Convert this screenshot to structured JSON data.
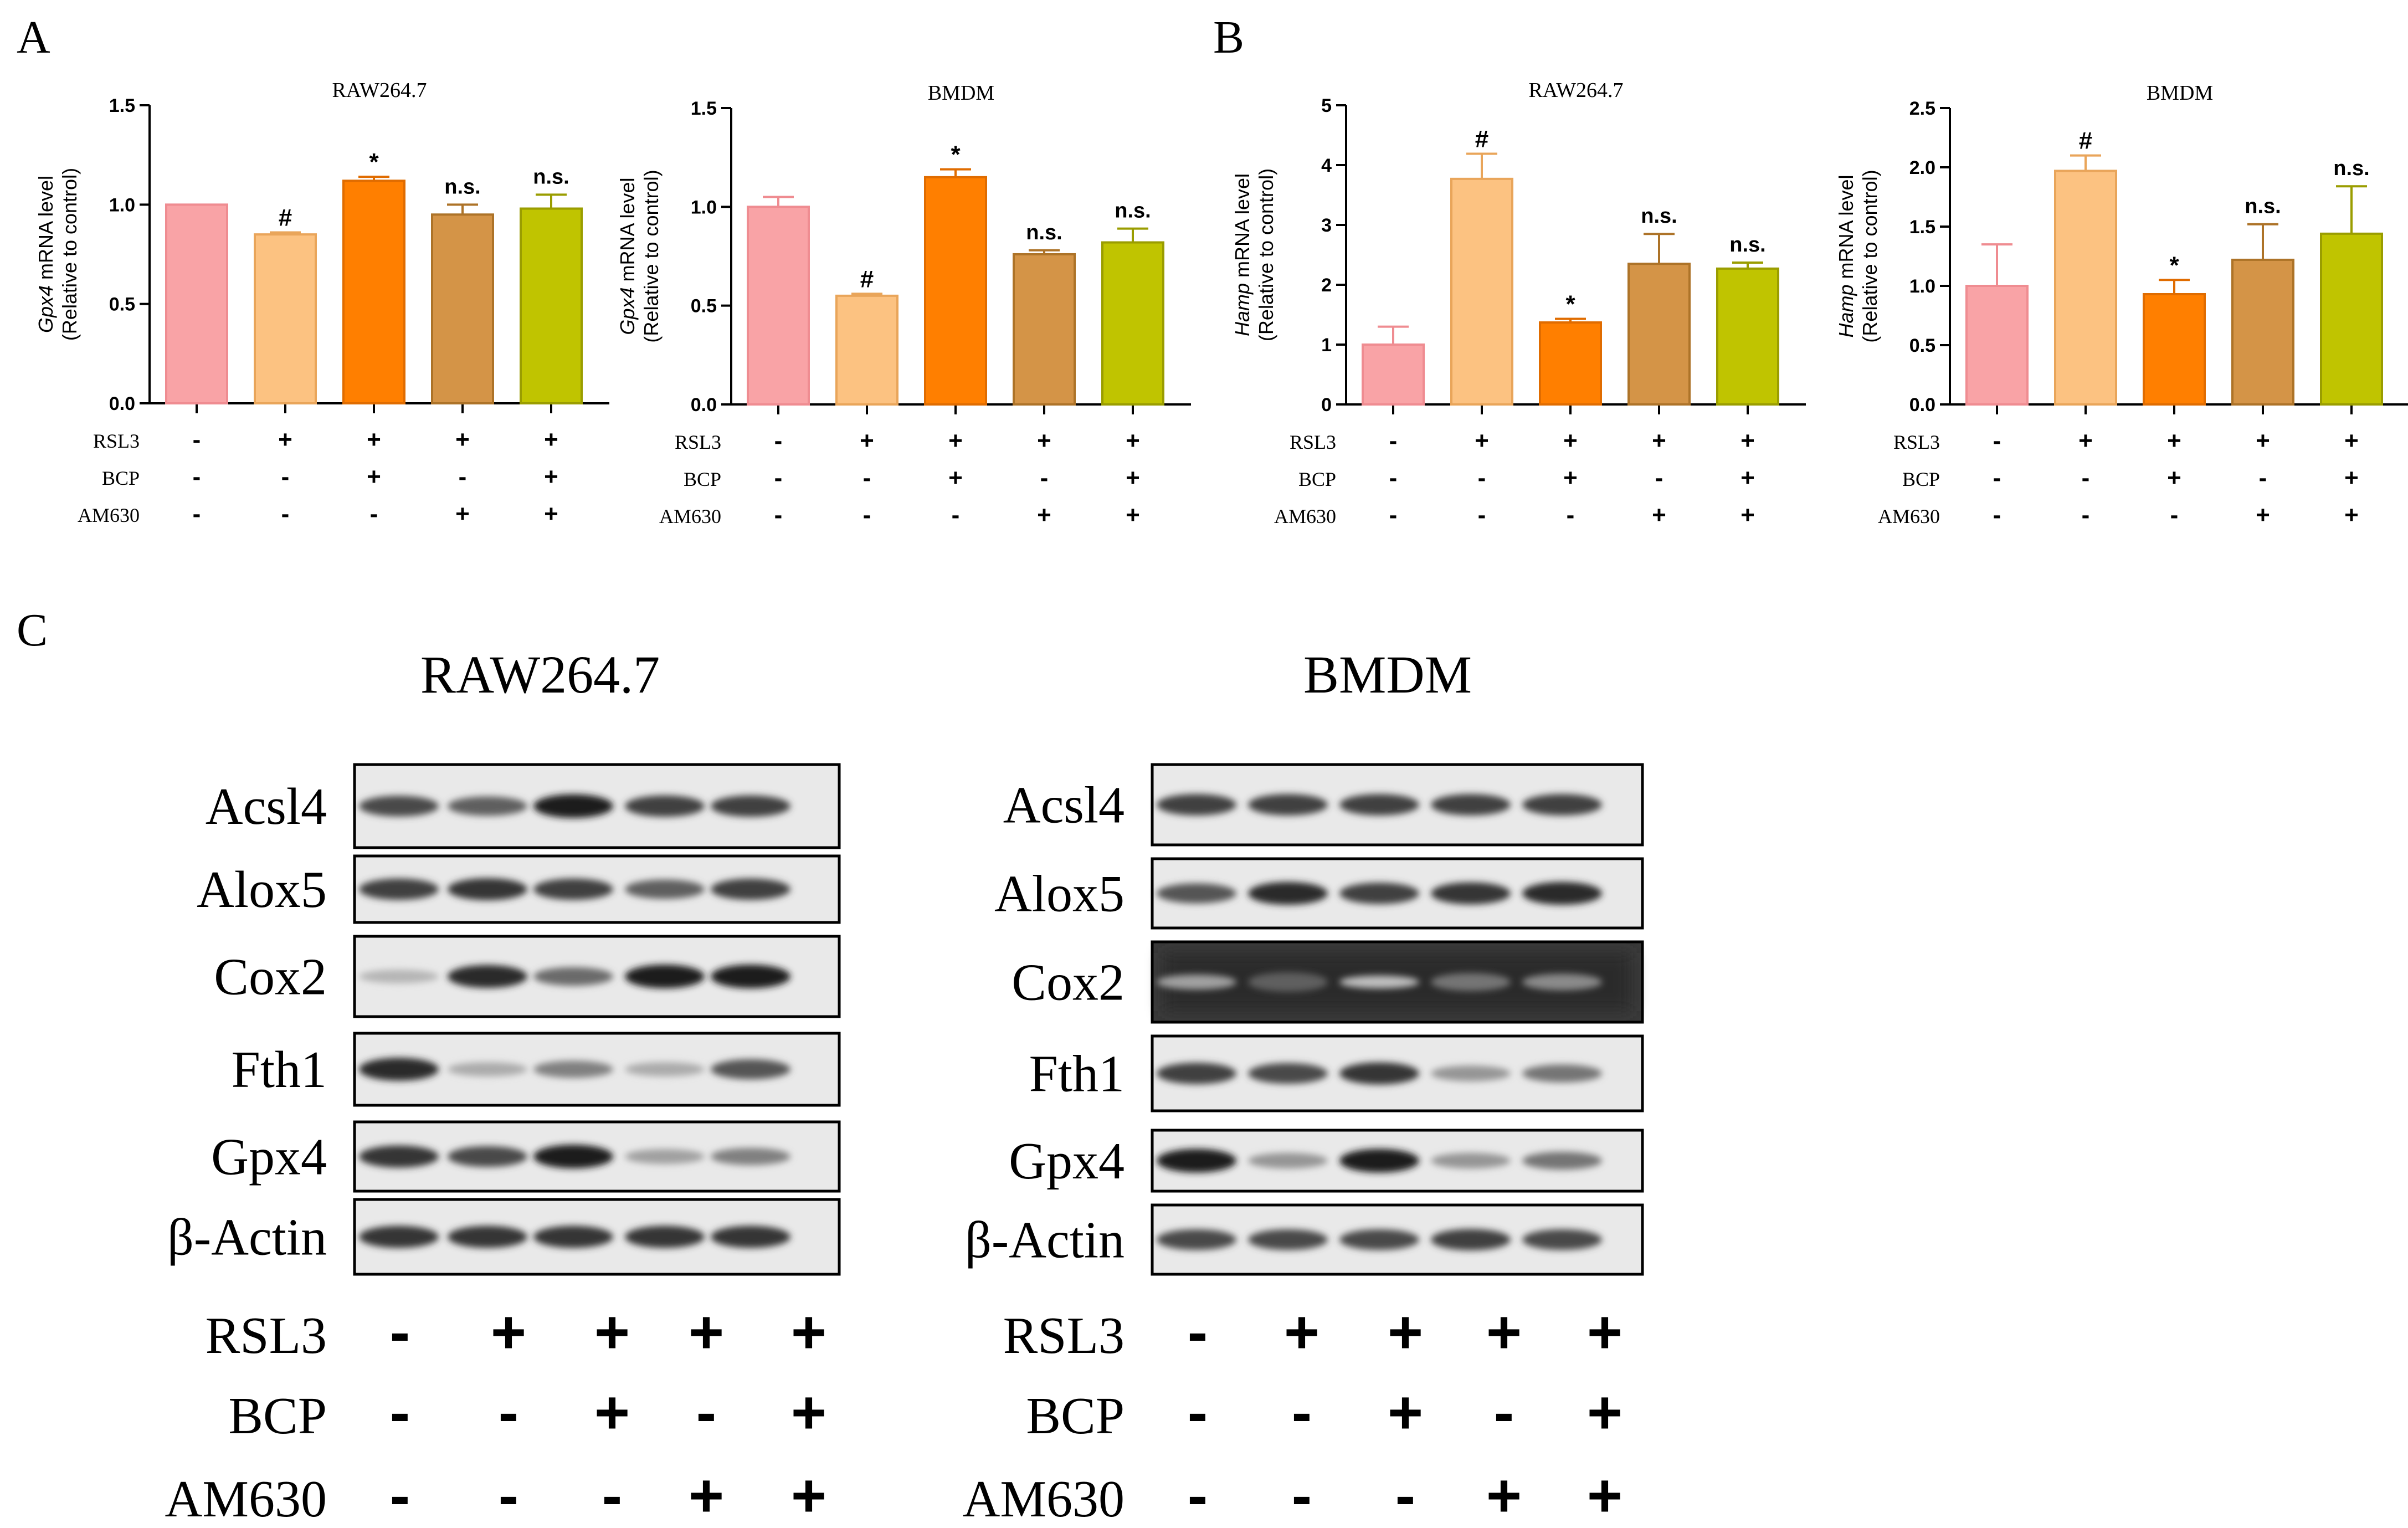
{
  "panels": {
    "A": "A",
    "B": "B",
    "C": "C"
  },
  "treatment_labels": [
    "RSL3",
    "BCP",
    "AM630"
  ],
  "treatments": {
    "RSL3": [
      "-",
      "+",
      "+",
      "+",
      "+"
    ],
    "BCP": [
      "-",
      "-",
      "+",
      "-",
      "+"
    ],
    "AM630": [
      "-",
      "-",
      "-",
      "+",
      "+"
    ]
  },
  "bar_colors": [
    "#f9a3a6",
    "#fcc281",
    "#ff7f00",
    "#d49447",
    "#c0c400"
  ],
  "bar_edge_colors": [
    "#ef8c91",
    "#e9a55a",
    "#e06c00",
    "#ad7328",
    "#9a9d00"
  ],
  "chart_data": [
    {
      "type": "bar",
      "panel": "A",
      "title": "RAW264.7",
      "ylabel_gene": "Gpx4",
      "ylabel_rest": " mRNA level",
      "ylabel2": "(Relative to control)",
      "ylim": [
        0,
        1.5
      ],
      "yticks": [
        "0.0",
        "0.5",
        "1.0",
        "1.5"
      ],
      "ytick_values": [
        0,
        0.5,
        1.0,
        1.5
      ],
      "values": [
        1.0,
        0.85,
        1.12,
        0.95,
        0.98
      ],
      "errors": [
        0.0,
        0.01,
        0.02,
        0.05,
        0.07
      ],
      "annotations": [
        "",
        "#",
        "*",
        "n.s.",
        "n.s."
      ]
    },
    {
      "type": "bar",
      "panel": "A",
      "title": "BMDM",
      "ylabel_gene": "Gpx4",
      "ylabel_rest": " mRNA level",
      "ylabel2": "(Relative to control)",
      "ylim": [
        0,
        1.5
      ],
      "yticks": [
        "0.0",
        "0.5",
        "1.0",
        "1.5"
      ],
      "ytick_values": [
        0,
        0.5,
        1.0,
        1.5
      ],
      "values": [
        1.0,
        0.55,
        1.15,
        0.76,
        0.82
      ],
      "errors": [
        0.05,
        0.01,
        0.04,
        0.02,
        0.07
      ],
      "annotations": [
        "",
        "#",
        "*",
        "n.s.",
        "n.s."
      ]
    },
    {
      "type": "bar",
      "panel": "B",
      "title": "RAW264.7",
      "ylabel_gene": "Hamp",
      "ylabel_rest": " mRNA level",
      "ylabel2": "(Relative to control)",
      "ylim": [
        0,
        5
      ],
      "yticks": [
        "0",
        "1",
        "2",
        "3",
        "4",
        "5"
      ],
      "ytick_values": [
        0,
        1,
        2,
        3,
        4,
        5
      ],
      "values": [
        1.0,
        3.77,
        1.37,
        2.35,
        2.27
      ],
      "errors": [
        0.3,
        0.42,
        0.06,
        0.5,
        0.1
      ],
      "annotations": [
        "",
        "#",
        "*",
        "n.s.",
        "n.s."
      ]
    },
    {
      "type": "bar",
      "panel": "B",
      "title": "BMDM",
      "ylabel_gene": "Hamp",
      "ylabel_rest": " mRNA level",
      "ylabel2": "(Relative to control)",
      "ylim": [
        0,
        2.5
      ],
      "yticks": [
        "0.0",
        "0.5",
        "1.0",
        "1.5",
        "2.0",
        "2.5"
      ],
      "ytick_values": [
        0,
        0.5,
        1.0,
        1.5,
        2.0,
        2.5
      ],
      "values": [
        1.0,
        1.97,
        0.93,
        1.22,
        1.44
      ],
      "errors": [
        0.35,
        0.13,
        0.12,
        0.3,
        0.4
      ],
      "annotations": [
        "",
        "#",
        "*",
        "n.s.",
        "n.s."
      ]
    }
  ],
  "blots": [
    {
      "title": "RAW264.7",
      "proteins": [
        "Acsl4",
        "Alox5",
        "Cox2",
        "Fth1",
        "Gpx4",
        "β-Actin"
      ],
      "band_intensity": [
        [
          0.75,
          0.65,
          0.95,
          0.8,
          0.8
        ],
        [
          0.8,
          0.85,
          0.8,
          0.65,
          0.8
        ],
        [
          0.25,
          0.9,
          0.6,
          0.95,
          0.95
        ],
        [
          0.9,
          0.3,
          0.5,
          0.3,
          0.7
        ],
        [
          0.85,
          0.75,
          0.95,
          0.35,
          0.5
        ],
        [
          0.85,
          0.85,
          0.85,
          0.85,
          0.85
        ]
      ]
    },
    {
      "title": "BMDM",
      "proteins": [
        "Acsl4",
        "Alox5",
        "Cox2",
        "Fth1",
        "Gpx4",
        "β-Actin"
      ],
      "band_intensity": [
        [
          0.8,
          0.8,
          0.8,
          0.8,
          0.8
        ],
        [
          0.7,
          0.9,
          0.8,
          0.85,
          0.9
        ],
        [
          0.35,
          0.65,
          0.2,
          0.55,
          0.45
        ],
        [
          0.8,
          0.75,
          0.85,
          0.4,
          0.55
        ],
        [
          0.95,
          0.4,
          0.95,
          0.4,
          0.55
        ],
        [
          0.75,
          0.75,
          0.75,
          0.8,
          0.75
        ]
      ]
    }
  ]
}
